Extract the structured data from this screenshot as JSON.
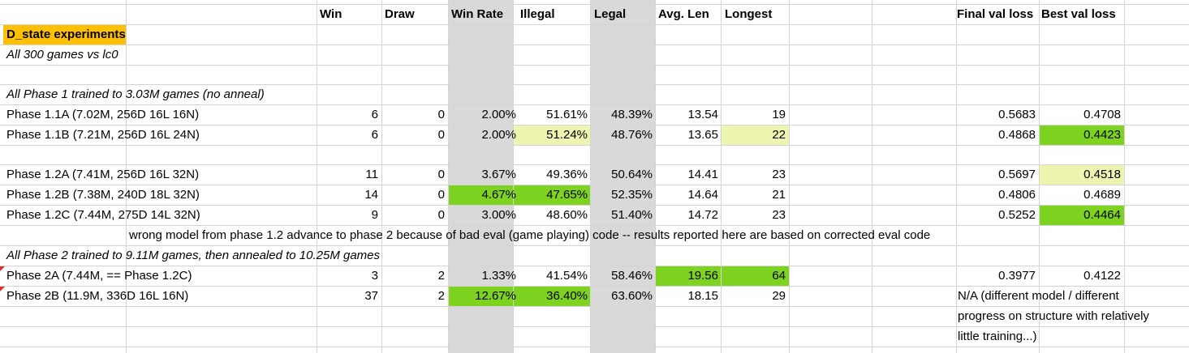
{
  "colors": {
    "gridline": "#d4d4d4",
    "gray_column": "#d9d9d9",
    "title_highlight": "#ffc000",
    "green": "#7ed321",
    "light_yellow": "#eef5b0"
  },
  "headers": {
    "win": "Win",
    "draw": "Draw",
    "win_rate": "Win Rate",
    "illegal": "Illegal",
    "legal": "Legal",
    "avg_len": "Avg. Len",
    "longest": "Longest",
    "final_val_loss": "Final val loss",
    "best_val_loss": "Best val loss"
  },
  "title": "D_state experiments",
  "notes": {
    "all_games": "All 300 games vs lc0",
    "phase1": "All Phase 1 trained to 3.03M games (no anneal)",
    "wrong_model": "wrong model from phase 1.2 advance to phase 2 because of bad eval (game playing) code -- results reported here are based on corrected eval code",
    "phase2": "All Phase 2 trained to 9.11M games, then annealed to 10.25M games",
    "na_line1": "N/A (different model / different",
    "na_line2": "progress on structure with relatively",
    "na_line3": "little training...)"
  },
  "rows": [
    {
      "name": "Phase 1.1A (7.02M, 256D 16L 16N)",
      "win": "6",
      "draw": "0",
      "win_rate": "2.00%",
      "illegal": "51.61%",
      "legal": "48.39%",
      "avg_len": "13.54",
      "longest": "19",
      "final": "0.5683",
      "best": "0.4708"
    },
    {
      "name": "Phase 1.1B (7.21M, 256D 16L 24N)",
      "win": "6",
      "draw": "0",
      "win_rate": "2.00%",
      "illegal": "51.24%",
      "legal": "48.76%",
      "avg_len": "13.65",
      "longest": "22",
      "final": "0.4868",
      "best": "0.4423"
    },
    {
      "name": "Phase 1.2A (7.41M, 256D 16L 32N)",
      "win": "11",
      "draw": "0",
      "win_rate": "3.67%",
      "illegal": "49.36%",
      "legal": "50.64%",
      "avg_len": "14.41",
      "longest": "23",
      "final": "0.5697",
      "best": "0.4518"
    },
    {
      "name": "Phase 1.2B (7.38M, 240D 18L 32N)",
      "win": "14",
      "draw": "0",
      "win_rate": "4.67%",
      "illegal": "47.65%",
      "legal": "52.35%",
      "avg_len": "14.64",
      "longest": "21",
      "final": "0.4806",
      "best": "0.4689"
    },
    {
      "name": "Phase 1.2C (7.44M, 275D 14L 32N)",
      "win": "9",
      "draw": "0",
      "win_rate": "3.00%",
      "illegal": "48.60%",
      "legal": "51.40%",
      "avg_len": "14.72",
      "longest": "23",
      "final": "0.5252",
      "best": "0.4464"
    },
    {
      "name": "Phase 2A (7.44M, == Phase 1.2C)",
      "win": "3",
      "draw": "2",
      "win_rate": "1.33%",
      "illegal": "41.54%",
      "legal": "58.46%",
      "avg_len": "19.56",
      "longest": "64",
      "final": "0.3977",
      "best": "0.4122"
    },
    {
      "name": "Phase 2B (11.9M, 336D 16L 16N)",
      "win": "37",
      "draw": "2",
      "win_rate": "12.67%",
      "illegal": "36.40%",
      "legal": "63.60%",
      "avg_len": "18.15",
      "longest": "29",
      "final": "",
      "best": ""
    }
  ]
}
